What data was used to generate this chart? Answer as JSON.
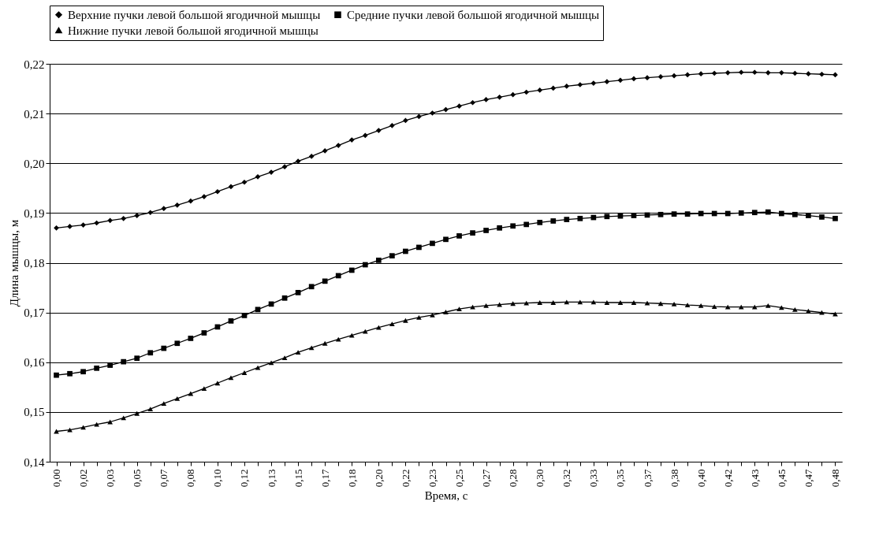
{
  "chart_data": {
    "type": "line",
    "xlabel": "Время, с",
    "ylabel": "Длина мышцы, м",
    "categories": [
      "0,00",
      null,
      "0,02",
      null,
      "0,03",
      null,
      "0,05",
      null,
      "0,07",
      null,
      "0,08",
      null,
      "0,10",
      null,
      "0,12",
      null,
      "0,13",
      null,
      "0,15",
      null,
      "0,17",
      null,
      "0,18",
      null,
      "0,20",
      null,
      "0,22",
      null,
      "0,23",
      null,
      "0,25",
      null,
      "0,27",
      null,
      "0,28",
      null,
      "0,30",
      null,
      "0,32",
      null,
      "0,33",
      null,
      "0,35",
      null,
      "0,37",
      null,
      "0,38",
      null,
      "0,40",
      null,
      "0,42",
      null,
      "0,43",
      null,
      "0,45",
      null,
      "0,47",
      null,
      "0,48"
    ],
    "series": [
      {
        "name": "Верхние пучки левой большой ягодичной мышцы",
        "color": "#000000",
        "marker": "diamond",
        "values": [
          0.187,
          0.1873,
          0.1876,
          0.188,
          0.1885,
          0.1889,
          0.1895,
          0.1901,
          0.1909,
          0.1916,
          0.1924,
          0.1933,
          0.1943,
          0.1953,
          0.1962,
          0.1973,
          0.1982,
          0.1993,
          0.2004,
          0.2014,
          0.2025,
          0.2036,
          0.2047,
          0.2056,
          0.2066,
          0.2076,
          0.2086,
          0.2094,
          0.2101,
          0.2108,
          0.2115,
          0.2122,
          0.2128,
          0.2133,
          0.2138,
          0.2143,
          0.2147,
          0.2151,
          0.2155,
          0.2158,
          0.2161,
          0.2164,
          0.2167,
          0.217,
          0.2172,
          0.2174,
          0.2176,
          0.2178,
          0.218,
          0.2181,
          0.2182,
          0.2183,
          0.2183,
          0.2182,
          0.2182,
          0.2181,
          0.218,
          0.2179,
          0.2178
        ]
      },
      {
        "name": "Средние пучки левой большой ягодичной мышцы",
        "color": "#000000",
        "marker": "square",
        "values": [
          0.1574,
          0.1577,
          0.1581,
          0.1588,
          0.1594,
          0.1601,
          0.1608,
          0.1619,
          0.1628,
          0.1638,
          0.1648,
          0.1659,
          0.1671,
          0.1683,
          0.1694,
          0.1706,
          0.1717,
          0.1729,
          0.174,
          0.1752,
          0.1763,
          0.1774,
          0.1785,
          0.1796,
          0.1805,
          0.1814,
          0.1823,
          0.1831,
          0.1839,
          0.1847,
          0.1854,
          0.186,
          0.1865,
          0.187,
          0.1874,
          0.1877,
          0.1881,
          0.1884,
          0.1887,
          0.1889,
          0.1891,
          0.1893,
          0.1894,
          0.1895,
          0.1896,
          0.1897,
          0.1898,
          0.1898,
          0.1899,
          0.1899,
          0.1899,
          0.19,
          0.1901,
          0.1902,
          0.1899,
          0.1897,
          0.1895,
          0.1892,
          0.1889
        ]
      },
      {
        "name": "Нижние пучки левой большой ягодичной мышцы",
        "color": "#000000",
        "marker": "triangle",
        "values": [
          0.1461,
          0.1464,
          0.1469,
          0.1475,
          0.148,
          0.1488,
          0.1497,
          0.1506,
          0.1517,
          0.1527,
          0.1537,
          0.1547,
          0.1558,
          0.1569,
          0.1579,
          0.1589,
          0.1599,
          0.1609,
          0.162,
          0.1629,
          0.1638,
          0.1646,
          0.1654,
          0.1662,
          0.167,
          0.1677,
          0.1684,
          0.169,
          0.1695,
          0.1701,
          0.1707,
          0.1711,
          0.1714,
          0.1716,
          0.1718,
          0.1719,
          0.172,
          0.172,
          0.1721,
          0.1721,
          0.1721,
          0.172,
          0.172,
          0.172,
          0.1719,
          0.1718,
          0.1717,
          0.1715,
          0.1714,
          0.1712,
          0.1711,
          0.1711,
          0.1711,
          0.1714,
          0.171,
          0.1706,
          0.1703,
          0.17,
          0.1697
        ]
      }
    ],
    "ylim": [
      0.14,
      0.22
    ],
    "yticks": [
      {
        "value": 0.14,
        "label": "0,14"
      },
      {
        "value": 0.15,
        "label": "0,15"
      },
      {
        "value": 0.16,
        "label": "0,16"
      },
      {
        "value": 0.17,
        "label": "0,17"
      },
      {
        "value": 0.18,
        "label": "0,18"
      },
      {
        "value": 0.19,
        "label": "0,19"
      },
      {
        "value": 0.2,
        "label": "0,20"
      },
      {
        "value": 0.21,
        "label": "0,21"
      },
      {
        "value": 0.22,
        "label": "0,22"
      }
    ],
    "grid": "y",
    "legend": "top left",
    "line_style": "solid"
  }
}
